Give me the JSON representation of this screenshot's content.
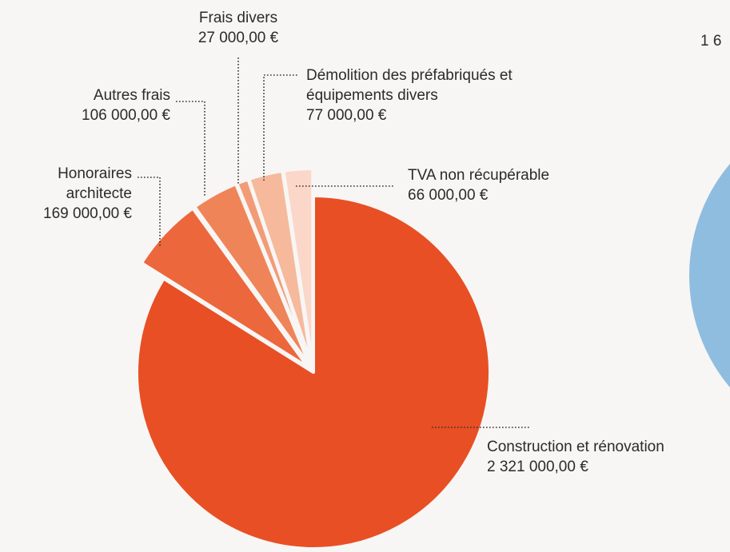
{
  "chart_data": {
    "type": "pie",
    "categories": [
      "Construction et rénovation",
      "Honoraires architecte",
      "Autres frais",
      "Frais divers",
      "Démolition des préfabriqués et équipements divers",
      "TVA non récupérable"
    ],
    "values": [
      2321000,
      169000,
      106000,
      27000,
      77000,
      66000
    ],
    "value_labels": [
      "2 321 000,00 €",
      "169 000,00 €",
      "106 000,00 €",
      "27 000,00 €",
      "77 000,00 €",
      "66 000,00 €"
    ],
    "colors": [
      "#e84f24",
      "#ec673c",
      "#ef8458",
      "#f29b77",
      "#f6b99c",
      "#fad7c8"
    ]
  },
  "clipped_text": "1 6"
}
